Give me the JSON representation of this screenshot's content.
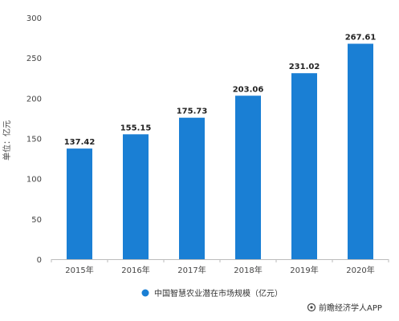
{
  "chart_data": {
    "type": "bar",
    "categories": [
      "2015年",
      "2016年",
      "2017年",
      "2018年",
      "2019年",
      "2020年"
    ],
    "values": [
      137.42,
      155.15,
      175.73,
      203.06,
      231.02,
      267.61
    ],
    "value_labels": [
      "137.42",
      "155.15",
      "175.73",
      "203.06",
      "231.02",
      "267.61"
    ],
    "ylabel": "单位：亿元",
    "ylim": [
      0,
      300
    ],
    "yticks": [
      0,
      50,
      100,
      150,
      200,
      250,
      300
    ],
    "ytick_labels": [
      "0",
      "50",
      "100",
      "150",
      "200",
      "250",
      "300"
    ],
    "grid": false,
    "bar_color": "#1a7fd4",
    "series": [
      {
        "name": "中国智慧农业潜在市场规模（亿元）"
      }
    ],
    "legend_position": "bottom"
  },
  "credit": {
    "icon": "at-icon",
    "text": "前瞻经济学人APP"
  }
}
